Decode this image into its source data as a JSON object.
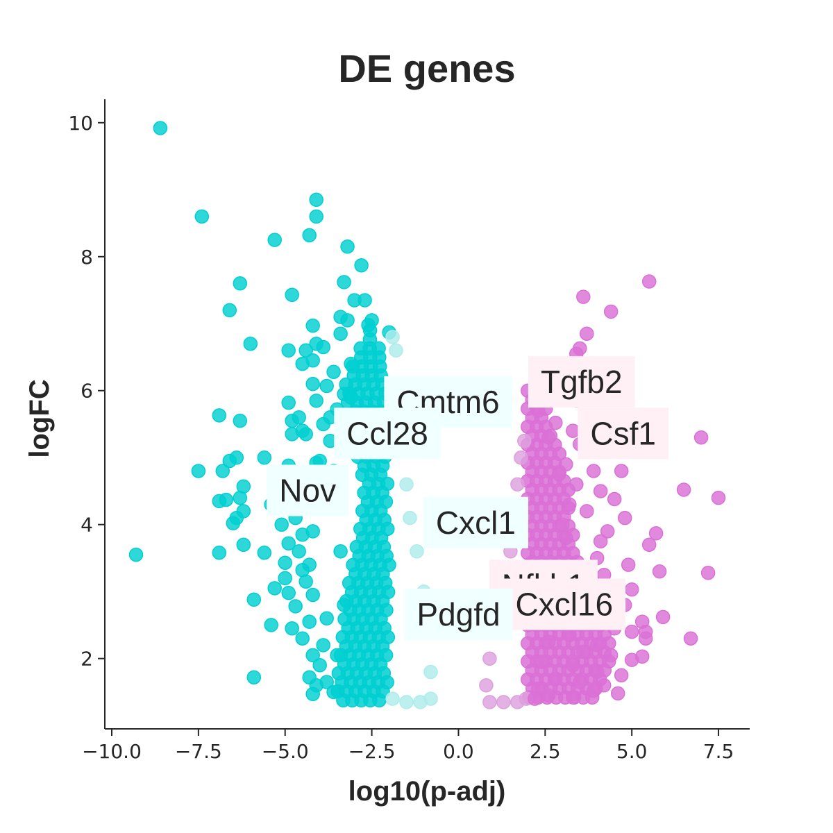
{
  "chart_data": {
    "type": "scatter",
    "title": "DE genes",
    "xlabel": "log10(p-adj)",
    "ylabel": "logFC",
    "xlim": [
      -10.2,
      8.4
    ],
    "ylim": [
      0.95,
      10.35
    ],
    "x_ticks": [
      -10.0,
      -7.5,
      -5.0,
      -2.5,
      0.0,
      2.5,
      5.0,
      7.5
    ],
    "x_tick_labels": [
      "−10.0",
      "−7.5",
      "−5.0",
      "−2.5",
      "0.0",
      "2.5",
      "5.0",
      "7.5"
    ],
    "y_ticks": [
      2,
      4,
      6,
      8,
      10
    ],
    "y_tick_labels": [
      "2",
      "4",
      "6",
      "8",
      "10"
    ],
    "grid": false,
    "colors": {
      "down_strong": "#00cfd1",
      "down_weak": "#aeecec",
      "up_weak": "#dda0dd",
      "up_strong": "#da70d6",
      "down_label_bg": "#f0ffff",
      "up_label_bg": "#fff0f5"
    },
    "series": [
      {
        "color": "#00cfd1",
        "points": [
          [
            -8.6,
            9.92
          ],
          [
            -7.4,
            8.6
          ],
          [
            -5.3,
            8.25
          ],
          [
            -4.1,
            8.85
          ],
          [
            -4.1,
            8.6
          ],
          [
            -4.3,
            8.32
          ],
          [
            -3.2,
            8.15
          ],
          [
            -2.8,
            7.87
          ],
          [
            -6.3,
            7.6
          ],
          [
            -3.3,
            7.62
          ],
          [
            -4.8,
            7.43
          ],
          [
            -3.0,
            7.35
          ],
          [
            -2.7,
            7.35
          ],
          [
            -6.6,
            7.2
          ],
          [
            -3.4,
            7.1
          ],
          [
            -3.2,
            7.05
          ],
          [
            -2.5,
            7.05
          ],
          [
            -2.6,
            6.98
          ],
          [
            -4.2,
            6.97
          ],
          [
            -3.4,
            6.85
          ],
          [
            -2.0,
            6.87
          ],
          [
            -6.0,
            6.7
          ],
          [
            -4.9,
            6.6
          ],
          [
            -4.4,
            6.6
          ],
          [
            -4.1,
            6.7
          ],
          [
            -3.9,
            6.65
          ],
          [
            -4.2,
            6.45
          ],
          [
            -4.5,
            6.4
          ],
          [
            -3.1,
            6.4
          ],
          [
            -3.6,
            6.28
          ],
          [
            -3.8,
            6.07
          ],
          [
            -4.2,
            6.1
          ],
          [
            -3.3,
            5.95
          ],
          [
            -4.9,
            5.82
          ],
          [
            -4.1,
            5.85
          ],
          [
            -3.1,
            5.9
          ],
          [
            -3.5,
            5.72
          ],
          [
            -4.8,
            5.55
          ],
          [
            -4.6,
            5.6
          ],
          [
            -6.9,
            5.63
          ],
          [
            -6.3,
            5.55
          ],
          [
            -3.9,
            5.5
          ],
          [
            -4.8,
            5.35
          ],
          [
            -4.4,
            5.35
          ],
          [
            -4.5,
            5.4
          ],
          [
            -3.7,
            5.25
          ],
          [
            -5.6,
            5.0
          ],
          [
            -6.4,
            5.0
          ],
          [
            -6.6,
            4.95
          ],
          [
            -4.1,
            4.92
          ],
          [
            -4.0,
            4.95
          ],
          [
            -4.9,
            4.88
          ],
          [
            -7.5,
            4.8
          ],
          [
            -6.8,
            4.8
          ],
          [
            -6.2,
            4.57
          ],
          [
            -6.3,
            4.4
          ],
          [
            -6.9,
            4.35
          ],
          [
            -6.7,
            4.37
          ],
          [
            -5.4,
            4.3
          ],
          [
            -6.2,
            4.2
          ],
          [
            -4.7,
            4.1
          ],
          [
            -6.4,
            4.1
          ],
          [
            -5.1,
            4.0
          ],
          [
            -6.5,
            4.02
          ],
          [
            -4.5,
            3.85
          ],
          [
            -4.2,
            3.9
          ],
          [
            -4.9,
            3.72
          ],
          [
            -6.2,
            3.7
          ],
          [
            -4.6,
            3.6
          ],
          [
            -5.6,
            3.58
          ],
          [
            -6.9,
            3.58
          ],
          [
            -9.3,
            3.55
          ],
          [
            -4.3,
            3.4
          ],
          [
            -5.0,
            3.43
          ],
          [
            -4.5,
            3.32
          ],
          [
            -5.0,
            3.2
          ],
          [
            -4.4,
            3.15
          ],
          [
            -5.3,
            3.05
          ],
          [
            -4.9,
            2.98
          ],
          [
            -4.2,
            2.95
          ],
          [
            -5.9,
            2.88
          ],
          [
            -4.7,
            2.78
          ],
          [
            -4.3,
            2.55
          ],
          [
            -3.8,
            2.6
          ],
          [
            -5.4,
            2.5
          ],
          [
            -4.8,
            2.45
          ],
          [
            -4.5,
            2.3
          ],
          [
            -3.9,
            2.2
          ],
          [
            -4.2,
            2.05
          ],
          [
            -4.0,
            1.9
          ],
          [
            -5.9,
            1.72
          ],
          [
            -4.3,
            1.72
          ],
          [
            -3.8,
            1.65
          ],
          [
            -4.1,
            1.6
          ],
          [
            -4.2,
            1.47
          ],
          [
            -3.6,
            1.5
          ],
          [
            -3.5,
            2.05
          ],
          [
            -3.3,
            2.8
          ],
          [
            -3.4,
            3.6
          ],
          [
            -3.6,
            4.8
          ],
          [
            -3.7,
            5.6
          ],
          [
            -3.9,
            4.4
          ]
        ]
      },
      {
        "color": "#aeecec",
        "points": [
          [
            -1.9,
            6.8
          ],
          [
            -1.8,
            6.6
          ],
          [
            -1.7,
            5.9
          ],
          [
            -1.6,
            5.5
          ],
          [
            -1.5,
            4.6
          ],
          [
            -1.4,
            4.1
          ],
          [
            -1.2,
            3.6
          ],
          [
            -1.0,
            3.0
          ],
          [
            -0.9,
            2.4
          ],
          [
            -0.8,
            1.8
          ],
          [
            -0.8,
            1.4
          ],
          [
            -1.1,
            1.35
          ],
          [
            -1.5,
            1.35
          ],
          [
            -1.9,
            1.4
          ]
        ]
      },
      {
        "color": "#dda0dd",
        "points": [
          [
            1.9,
            5.25
          ],
          [
            1.8,
            5.0
          ],
          [
            1.7,
            4.6
          ],
          [
            1.6,
            4.1
          ],
          [
            1.5,
            3.6
          ],
          [
            1.4,
            3.3
          ],
          [
            1.3,
            2.9
          ],
          [
            1.1,
            2.5
          ],
          [
            0.9,
            2.0
          ],
          [
            0.8,
            1.6
          ],
          [
            0.9,
            1.35
          ],
          [
            1.3,
            1.35
          ],
          [
            1.7,
            1.35
          ],
          [
            1.95,
            1.4
          ]
        ]
      },
      {
        "color": "#da70d6",
        "points": [
          [
            5.5,
            7.63
          ],
          [
            3.6,
            7.4
          ],
          [
            4.4,
            7.18
          ],
          [
            3.7,
            6.85
          ],
          [
            3.5,
            6.63
          ],
          [
            3.4,
            6.55
          ],
          [
            2.9,
            6.3
          ],
          [
            3.5,
            6.1
          ],
          [
            2.6,
            6.05
          ],
          [
            3.4,
            5.85
          ],
          [
            2.3,
            5.7
          ],
          [
            2.8,
            5.52
          ],
          [
            3.3,
            5.4
          ],
          [
            2.6,
            5.3
          ],
          [
            7.0,
            5.3
          ],
          [
            3.5,
            5.2
          ],
          [
            3.1,
            4.9
          ],
          [
            3.9,
            4.8
          ],
          [
            4.7,
            4.8
          ],
          [
            2.9,
            4.75
          ],
          [
            3.4,
            4.6
          ],
          [
            6.5,
            4.52
          ],
          [
            4.1,
            4.5
          ],
          [
            4.5,
            4.38
          ],
          [
            7.5,
            4.4
          ],
          [
            3.2,
            4.3
          ],
          [
            3.7,
            4.2
          ],
          [
            4.8,
            4.1
          ],
          [
            3.0,
            4.0
          ],
          [
            4.3,
            3.9
          ],
          [
            5.7,
            3.87
          ],
          [
            3.1,
            3.8
          ],
          [
            4.1,
            3.75
          ],
          [
            5.5,
            3.7
          ],
          [
            4.0,
            3.5
          ],
          [
            4.9,
            3.4
          ],
          [
            5.8,
            3.3
          ],
          [
            7.2,
            3.28
          ],
          [
            4.2,
            3.25
          ],
          [
            3.4,
            3.2
          ],
          [
            5.0,
            3.03
          ],
          [
            3.1,
            2.85
          ],
          [
            4.8,
            2.8
          ],
          [
            4.3,
            2.65
          ],
          [
            5.9,
            2.62
          ],
          [
            3.8,
            2.55
          ],
          [
            5.3,
            2.55
          ],
          [
            4.5,
            2.45
          ],
          [
            5.0,
            2.4
          ],
          [
            5.4,
            2.4
          ],
          [
            3.2,
            2.35
          ],
          [
            5.4,
            2.3
          ],
          [
            6.7,
            2.3
          ],
          [
            4.0,
            2.2
          ],
          [
            2.6,
            2.25
          ],
          [
            3.6,
            2.1
          ],
          [
            4.4,
            2.05
          ],
          [
            5.3,
            2.03
          ],
          [
            5.0,
            1.98
          ],
          [
            2.4,
            1.95
          ],
          [
            3.3,
            1.9
          ],
          [
            4.0,
            1.8
          ],
          [
            4.7,
            1.75
          ],
          [
            2.8,
            1.7
          ],
          [
            3.5,
            1.65
          ],
          [
            4.2,
            1.6
          ],
          [
            2.3,
            1.55
          ],
          [
            3.9,
            1.52
          ],
          [
            4.6,
            1.48
          ],
          [
            2.6,
            1.45
          ],
          [
            3.3,
            1.42
          ],
          [
            2.2,
            1.4
          ]
        ]
      }
    ],
    "bands": [
      {
        "color": "#00cfd1",
        "ymin": 1.35,
        "rows": [
          [
            6.9,
            -2.55,
            -2.4
          ],
          [
            6.6,
            -2.85,
            -2.2
          ],
          [
            6.3,
            -3.1,
            -2.05
          ],
          [
            6.0,
            -3.3,
            -2.0
          ],
          [
            5.5,
            -3.0,
            -2.0
          ],
          [
            5.0,
            -2.9,
            -2.0
          ],
          [
            4.6,
            -2.7,
            -2.0
          ],
          [
            4.0,
            -2.8,
            -2.0
          ],
          [
            3.5,
            -3.0,
            -2.0
          ],
          [
            3.0,
            -3.2,
            -2.0
          ],
          [
            2.5,
            -3.3,
            -2.0
          ],
          [
            2.0,
            -3.4,
            -2.0
          ],
          [
            1.6,
            -3.5,
            -2.0
          ],
          [
            1.35,
            -3.45,
            -2.1
          ]
        ]
      },
      {
        "color": "#da70d6",
        "ymin": 1.35,
        "rows": [
          [
            6.0,
            2.0,
            2.4
          ],
          [
            5.5,
            2.0,
            2.7
          ],
          [
            5.0,
            2.0,
            3.0
          ],
          [
            4.5,
            2.0,
            3.2
          ],
          [
            4.0,
            2.0,
            3.3
          ],
          [
            3.5,
            2.0,
            3.5
          ],
          [
            3.0,
            2.0,
            3.8
          ],
          [
            2.5,
            2.0,
            4.3
          ],
          [
            2.0,
            2.0,
            4.4
          ],
          [
            1.6,
            2.0,
            4.2
          ],
          [
            1.35,
            2.05,
            3.8
          ]
        ]
      }
    ],
    "annotations": [
      {
        "text": "Tgfb2",
        "x": 3.55,
        "y": 6.12,
        "group": "up"
      },
      {
        "text": "Cmtm6",
        "x": -0.3,
        "y": 5.82,
        "group": "down"
      },
      {
        "text": "Csf1",
        "x": 4.75,
        "y": 5.35,
        "group": "up"
      },
      {
        "text": "Ccl28",
        "x": -2.05,
        "y": 5.35,
        "group": "down"
      },
      {
        "text": "Nov",
        "x": -4.35,
        "y": 4.5,
        "group": "down"
      },
      {
        "text": "Cxcl1",
        "x": 0.5,
        "y": 4.02,
        "group": "down"
      },
      {
        "text": "Nfkb1",
        "x": 2.45,
        "y": 3.08,
        "group": "up"
      },
      {
        "text": "Cxcl16",
        "x": 3.05,
        "y": 2.8,
        "group": "up"
      },
      {
        "text": "Pdgfd",
        "x": 0.0,
        "y": 2.65,
        "group": "down"
      }
    ]
  }
}
